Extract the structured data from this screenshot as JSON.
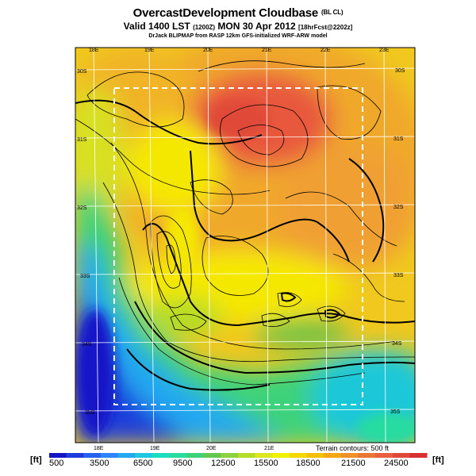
{
  "header": {
    "title": "OvercastDevelopment Cloudbase",
    "title_suffix": "(BL CL)",
    "valid_prefix": "Valid 1400 LST",
    "valid_utc": "(1200Z)",
    "valid_date": "MON 30 Apr 2012",
    "valid_fcst": "[18hrFcst@2202z]",
    "credit": "DrJack BLIPMAP from RASP 12km GFS-initialized WRF-ARW model"
  },
  "map": {
    "top_lon_ticks": [
      "18E",
      "19E",
      "20E",
      "21E",
      "22E",
      "23E"
    ],
    "bottom_lon_ticks": [
      "18E",
      "19E",
      "20E",
      "21E"
    ],
    "left_lat_ticks": [
      "30S",
      "31S",
      "32S",
      "33S",
      "34S",
      "35S"
    ],
    "right_lat_ticks": [
      "30S",
      "31S",
      "32S",
      "33S",
      "34S",
      "35S"
    ],
    "terrain_note": "Terrain contours: 500 ft",
    "colors": {
      "deep_blue": "#1e2fd8",
      "blue": "#2f7bff",
      "cyan": "#1ecdd6",
      "green": "#6cc24a",
      "lime": "#c8dc2a",
      "yellow": "#f5e800",
      "orange": "#f0a030",
      "red": "#e8583c"
    }
  },
  "colorbar": {
    "unit_left": "[ft]",
    "unit_right": "[ft]",
    "labels": [
      "500",
      "3500",
      "6500",
      "9500",
      "12500",
      "15500",
      "18500",
      "21500",
      "24500"
    ],
    "colors": [
      "#1414c8",
      "#1e3cdc",
      "#2860f0",
      "#2c84ff",
      "#24a8f0",
      "#1ec8e0",
      "#1edcc0",
      "#28dca0",
      "#3cd27a",
      "#64c84e",
      "#8cd23c",
      "#b4dc28",
      "#dce61e",
      "#f0f000",
      "#f5d800",
      "#f5c00a",
      "#f5a814",
      "#f0902a",
      "#eb7832",
      "#e86040",
      "#e04838",
      "#d83030"
    ]
  }
}
